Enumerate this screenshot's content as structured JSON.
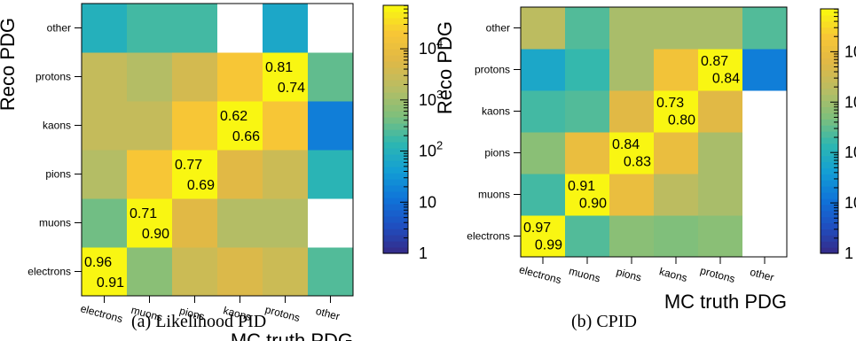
{
  "color_scale": {
    "stops": [
      "#352a87",
      "#1f4fc0",
      "#0f74d9",
      "#139ed4",
      "#2db7b1",
      "#7fbf7b",
      "#b7bd64",
      "#e0b846",
      "#f7c636",
      "#f9fb0e"
    ],
    "empty_color": "#ffffff",
    "log_min": 0,
    "log_max": 4.85,
    "tick_labels": [
      "1",
      "10",
      "10",
      "10",
      "10"
    ],
    "tick_exponents": [
      "",
      "",
      "2",
      "3",
      "4"
    ]
  },
  "chart_data": [
    {
      "type": "heatmap",
      "caption": "(a) Likelihood PID",
      "xlabel": "MC truth PDG",
      "ylabel": "Reco PDG",
      "x_categories": [
        "electrons",
        "muons",
        "pions",
        "kaons",
        "protons",
        "other"
      ],
      "y_categories": [
        "electrons",
        "muons",
        "pions",
        "kaons",
        "protons",
        "other"
      ],
      "log_z": true,
      "zlim": [
        1,
        70000
      ],
      "counts_log10": [
        [
          4.8,
          2.8,
          3.5,
          3.7,
          3.5,
          2.4
        ],
        [
          2.6,
          4.8,
          3.8,
          3.2,
          3.2,
          null
        ],
        [
          3.2,
          4.3,
          4.8,
          3.8,
          3.5,
          2.1
        ],
        [
          3.4,
          3.4,
          4.3,
          4.8,
          4.3,
          1.2
        ],
        [
          3.4,
          3.2,
          3.6,
          4.3,
          4.8,
          2.5
        ],
        [
          2.0,
          2.3,
          2.3,
          null,
          1.8,
          null
        ]
      ],
      "annotations": [
        {
          "col": 0,
          "row": 0,
          "upper": "0.96",
          "lower": "0.91"
        },
        {
          "col": 1,
          "row": 1,
          "upper": "0.71",
          "lower": "0.90"
        },
        {
          "col": 2,
          "row": 2,
          "upper": "0.77",
          "lower": "0.69"
        },
        {
          "col": 3,
          "row": 3,
          "upper": "0.62",
          "lower": "0.66"
        },
        {
          "col": 4,
          "row": 4,
          "upper": "0.81",
          "lower": "0.74"
        }
      ]
    },
    {
      "type": "heatmap",
      "caption": "(b) CPID",
      "xlabel": "MC truth PDG",
      "ylabel": "Reco PDG",
      "x_categories": [
        "electrons",
        "muons",
        "pions",
        "kaons",
        "protons",
        "other"
      ],
      "y_categories": [
        "electrons",
        "muons",
        "pions",
        "kaons",
        "protons",
        "other"
      ],
      "log_z": true,
      "zlim": [
        1,
        70000
      ],
      "counts_log10": [
        [
          4.8,
          2.4,
          2.8,
          2.7,
          2.8,
          null
        ],
        [
          2.3,
          4.8,
          4.0,
          3.3,
          3.1,
          null
        ],
        [
          2.8,
          4.0,
          4.8,
          4.0,
          3.1,
          null
        ],
        [
          2.3,
          2.4,
          3.8,
          4.8,
          3.8,
          null
        ],
        [
          1.8,
          2.2,
          3.1,
          4.2,
          4.8,
          1.2
        ],
        [
          3.3,
          2.4,
          3.1,
          3.1,
          3.1,
          2.4
        ]
      ],
      "annotations": [
        {
          "col": 0,
          "row": 0,
          "upper": "0.97",
          "lower": "0.99"
        },
        {
          "col": 1,
          "row": 1,
          "upper": "0.91",
          "lower": "0.90"
        },
        {
          "col": 2,
          "row": 2,
          "upper": "0.84",
          "lower": "0.83"
        },
        {
          "col": 3,
          "row": 3,
          "upper": "0.73",
          "lower": "0.80"
        },
        {
          "col": 4,
          "row": 4,
          "upper": "0.87",
          "lower": "0.84"
        }
      ]
    }
  ]
}
